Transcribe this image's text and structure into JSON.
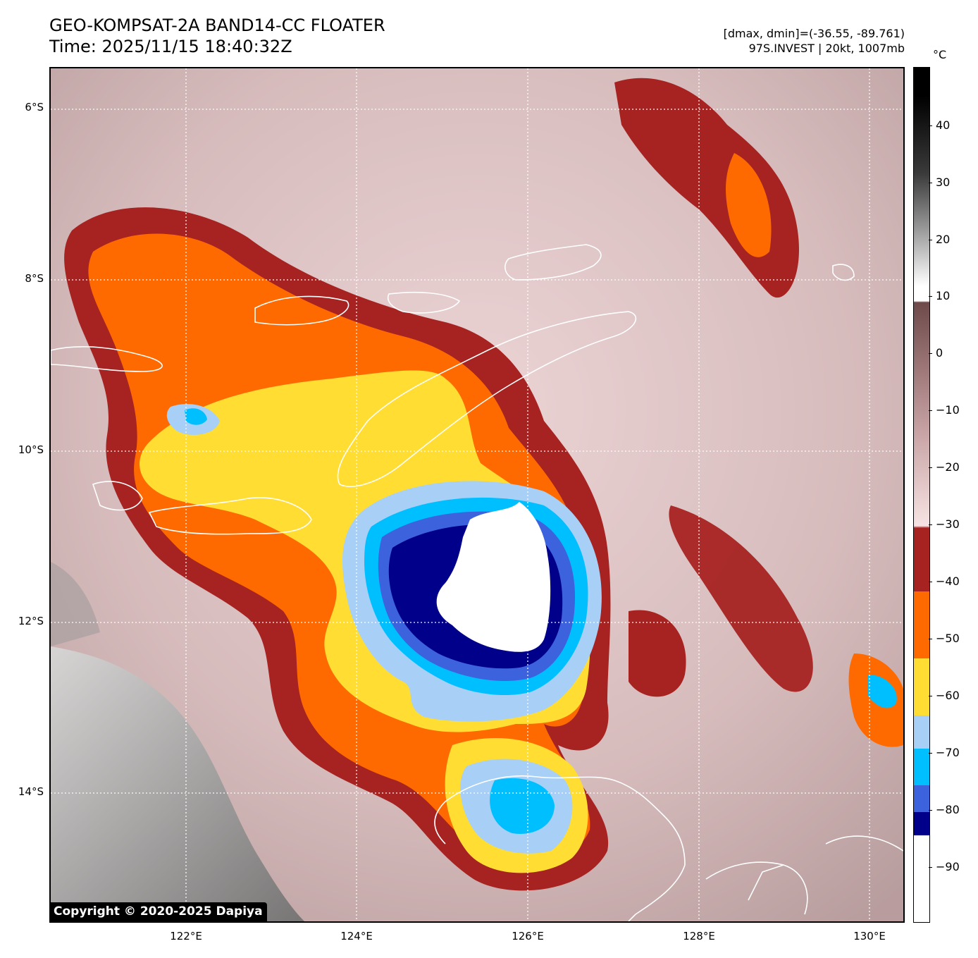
{
  "header": {
    "title": "GEO-KOMPSAT-2A BAND14-CC FLOATER",
    "time": "Time: 2025/11/15 18:40:32Z",
    "dmax_dmin": "[dmax, dmin]=(-36.55, -89.761)",
    "storm": "97S.INVEST | 20kt, 1007mb"
  },
  "map": {
    "lat_labels": [
      "6°S",
      "8°S",
      "10°S",
      "12°S",
      "14°S"
    ],
    "lon_labels": [
      "122°E",
      "124°E",
      "126°E",
      "128°E",
      "130°E"
    ],
    "copyright": "Copyright © 2020-2025 Dapiya"
  },
  "colorbar": {
    "unit": "°C",
    "ticks": [
      "40",
      "30",
      "20",
      "10",
      "0",
      "−10",
      "−20",
      "−30",
      "−40",
      "−50",
      "−60",
      "−70",
      "−80",
      "−90"
    ],
    "colors": {
      "warm_top": "#000000",
      "warm_gray": "#ffffff",
      "brown_dark": "#6e4a4a",
      "pink_light": "#f7e3e3",
      "dark_red": "#a62321",
      "orange": "#ff6a00",
      "yellow": "#ffdd33",
      "light_blue": "#a8d0f7",
      "cyan": "#00bfff",
      "royal_blue": "#3d62de",
      "navy": "#00008b",
      "white_core": "#ffffff"
    }
  }
}
